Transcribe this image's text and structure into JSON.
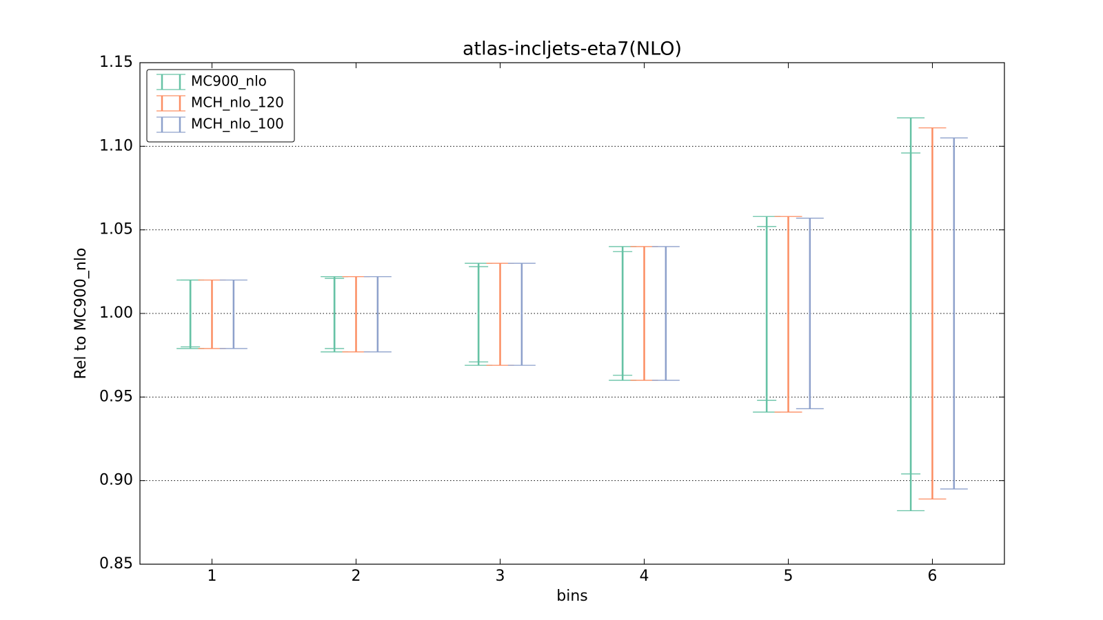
{
  "chart_data": {
    "type": "errorbar",
    "title": "atlas-incljets-eta7(NLO)",
    "xlabel": "bins",
    "ylabel": "Rel to MC900_nlo",
    "x": [
      1,
      2,
      3,
      4,
      5,
      6
    ],
    "xlim": [
      0.5,
      6.5
    ],
    "xticks": [
      1,
      2,
      3,
      4,
      5,
      6
    ],
    "ylim": [
      0.85,
      1.15
    ],
    "yticks": [
      0.85,
      {
        "value": 0.9,
        "label": "0.90"
      },
      0.95,
      {
        "value": 1.0,
        "label": "1.00"
      },
      1.05,
      {
        "value": 1.1,
        "label": "1.10"
      },
      1.15
    ],
    "grid": true,
    "legend": "upper left",
    "series": [
      {
        "name": "MC900_nlo",
        "color": "#66c2a5",
        "low": [
          0.979,
          0.977,
          0.969,
          0.96,
          0.941,
          0.882
        ],
        "high": [
          1.02,
          1.022,
          1.03,
          1.04,
          1.058,
          1.117
        ],
        "inner_low": [
          0.98,
          0.979,
          0.971,
          0.963,
          0.948,
          0.904
        ],
        "inner_high": [
          1.02,
          1.021,
          1.028,
          1.037,
          1.052,
          1.096
        ]
      },
      {
        "name": "MCH_nlo_120",
        "color": "#fc8d62",
        "low": [
          0.979,
          0.977,
          0.969,
          0.96,
          0.941,
          0.889
        ],
        "high": [
          1.02,
          1.022,
          1.03,
          1.04,
          1.058,
          1.111
        ]
      },
      {
        "name": "MCH_nlo_100",
        "color": "#8da0cb",
        "low": [
          0.979,
          0.977,
          0.969,
          0.96,
          0.943,
          0.895
        ],
        "high": [
          1.02,
          1.022,
          1.03,
          1.04,
          1.057,
          1.105
        ]
      }
    ]
  }
}
